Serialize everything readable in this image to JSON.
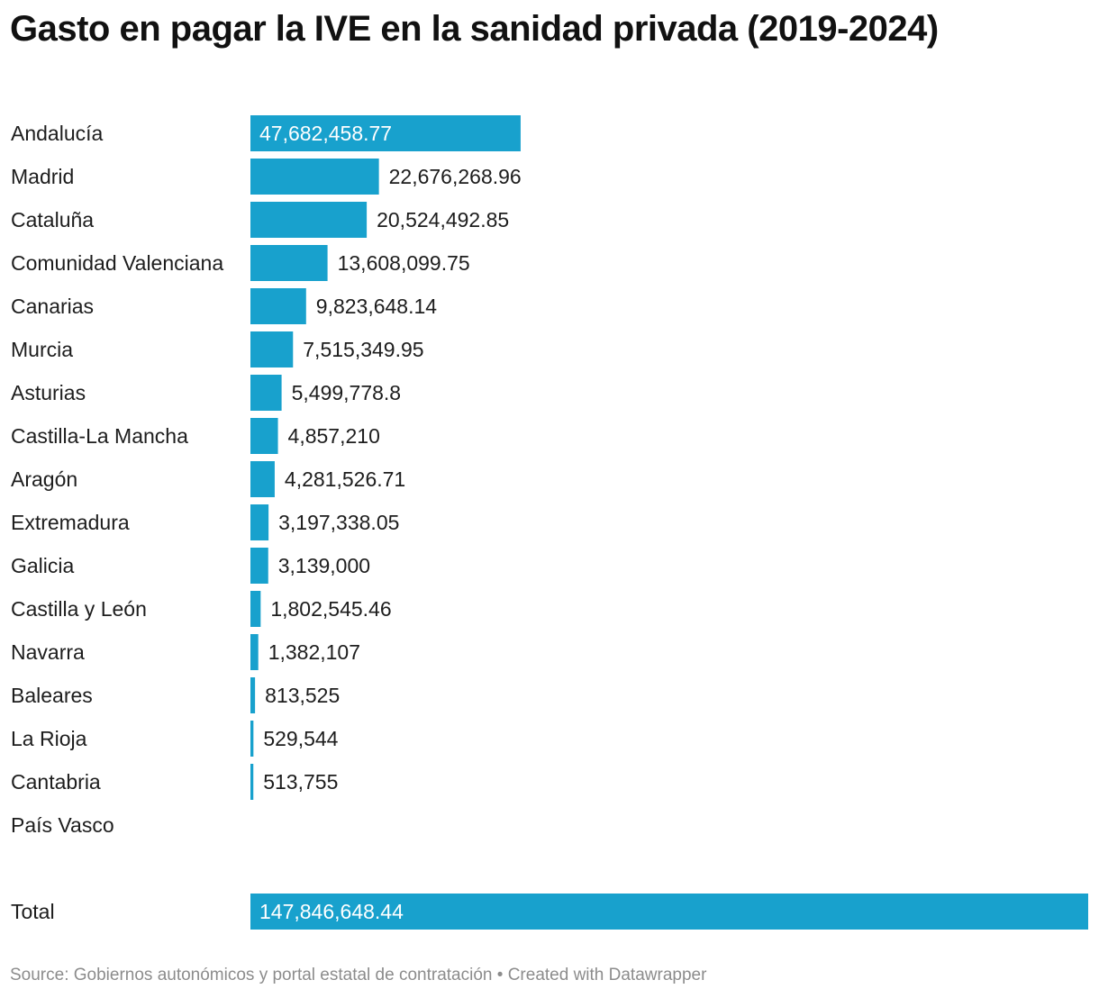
{
  "title": "Gasto en pagar la IVE en la sanidad privada (2019-2024)",
  "footer": {
    "source": "Source: Gobiernos autonómicos y portal estatal de contratación",
    "separator": "•",
    "credit": "Created with Datawrapper"
  },
  "colors": {
    "bar": "#18a1cd",
    "text": "#1d1d1d",
    "inside_text": "#ffffff",
    "footer": "#8c8c8c"
  },
  "chart_data": {
    "type": "bar",
    "orientation": "horizontal",
    "title": "Gasto en pagar la IVE en la sanidad privada (2019-2024)",
    "xlabel": "",
    "ylabel": "",
    "xlim": [
      0,
      147846648.44
    ],
    "categories": [
      "Andalucía",
      "Madrid",
      "Cataluña",
      "Comunidad Valenciana",
      "Canarias",
      "Murcia",
      "Asturias",
      "Castilla-La Mancha",
      "Aragón",
      "Extremadura",
      "Galicia",
      "Castilla y León",
      "Navarra",
      "Baleares",
      "La Rioja",
      "Cantabria",
      "País Vasco",
      "Total"
    ],
    "values": [
      47682458.77,
      22676268.96,
      20524492.85,
      13608099.75,
      9823648.14,
      7515349.95,
      5499778.8,
      4857210,
      4281526.71,
      3197338.05,
      3139000,
      1802545.46,
      1382107,
      813525,
      529544,
      513755,
      null,
      147846648.44
    ],
    "labels": [
      "47,682,458.77",
      "22,676,268.96",
      "20,524,492.85",
      "13,608,099.75",
      "9,823,648.14",
      "7,515,349.95",
      "5,499,778.8",
      "4,857,210",
      "4,281,526.71",
      "3,197,338.05",
      "3,139,000",
      "1,802,545.46",
      "1,382,107",
      "813,525",
      "529,544",
      "513,755",
      "",
      "147,846,648.44"
    ],
    "labels_inside": [
      true,
      false,
      false,
      false,
      false,
      false,
      false,
      false,
      false,
      false,
      false,
      false,
      false,
      false,
      false,
      false,
      false,
      true
    ]
  }
}
